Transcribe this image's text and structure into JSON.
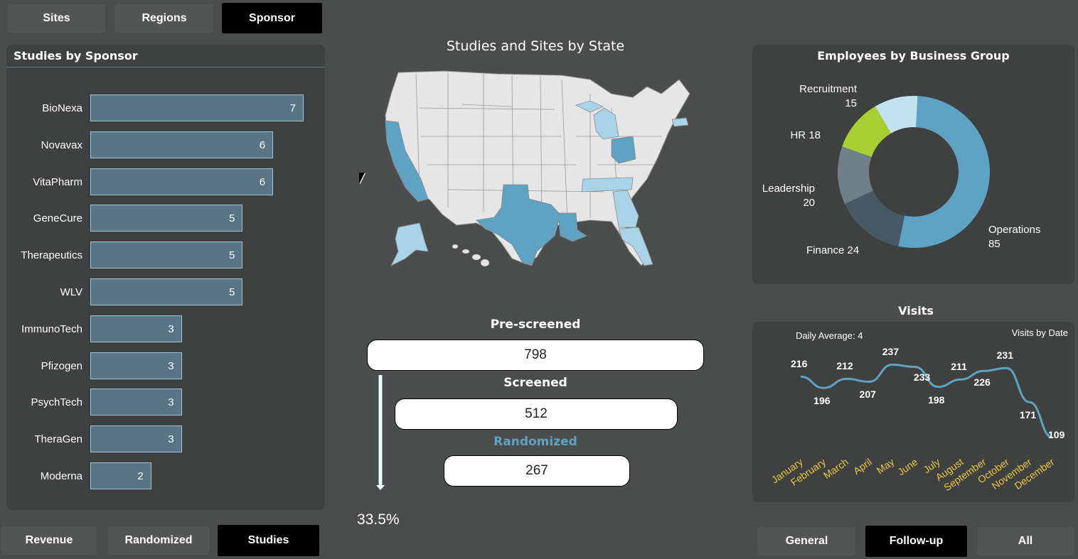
{
  "top_tabs": [
    {
      "label": "Sites",
      "active": false
    },
    {
      "label": "Regions",
      "active": false
    },
    {
      "label": "Sponsor",
      "active": true
    }
  ],
  "bottom_left_tabs": [
    {
      "label": "Revenue",
      "active": false
    },
    {
      "label": "Randomized",
      "active": false
    },
    {
      "label": "Studies",
      "active": true
    }
  ],
  "bottom_right_tabs": [
    {
      "label": "General",
      "active": false
    },
    {
      "label": "Follow-up",
      "active": true
    },
    {
      "label": "All",
      "active": false
    }
  ],
  "studies_panel": {
    "title": "Studies by Sponsor"
  },
  "map_panel": {
    "title": "Studies and Sites by State"
  },
  "donut_panel": {
    "title": "Employees by Business Group"
  },
  "visits_panel": {
    "title": "Visits",
    "daily_average": "Daily Average: 4",
    "visits_by_date": "Visits by Date"
  },
  "funnel": {
    "stages": [
      {
        "label": "Pre-screened",
        "value": "798"
      },
      {
        "label": "Screened",
        "value": "512"
      },
      {
        "label": "Randomized",
        "value": "267"
      }
    ],
    "conversion": "33.5%"
  },
  "colors": {
    "accent": "#5ea3c4",
    "light_blue": "#a9d3e8",
    "lime": "#a8cf32",
    "month_label": "#e8c840"
  },
  "chart_data": [
    {
      "type": "bar",
      "title": "Studies by Sponsor",
      "categories": [
        "BioNexa",
        "Novavax",
        "VitaPharm",
        "GeneCure",
        "Therapeutics",
        "WLV",
        "ImmunoTech",
        "Pfizogen",
        "PsychTech",
        "TheraGen",
        "Moderna"
      ],
      "values": [
        7,
        6,
        6,
        5,
        5,
        5,
        3,
        3,
        3,
        3,
        2
      ],
      "xlim": [
        0,
        7
      ]
    },
    {
      "type": "pie",
      "title": "Employees by Business Group",
      "categories": [
        "Operations",
        "Finance",
        "Leadership",
        "HR",
        "Recruitment"
      ],
      "values": [
        85,
        24,
        20,
        18,
        15
      ],
      "labels": [
        {
          "name": "Operations",
          "value": "85"
        },
        {
          "name": "Finance",
          "value": "24"
        },
        {
          "name": "Leadership",
          "value": "20"
        },
        {
          "name": "HR",
          "value": "18"
        },
        {
          "name": "Recruitment",
          "value": "15"
        }
      ],
      "colors": [
        "#5ea3c4",
        "#465a65",
        "#6f7e87",
        "#a8cf32",
        "#c3e2f0"
      ]
    },
    {
      "type": "line",
      "title": "Visits",
      "categories": [
        "January",
        "February",
        "March",
        "April",
        "May",
        "June",
        "July",
        "August",
        "September",
        "October",
        "November",
        "December"
      ],
      "values": [
        216,
        196,
        212,
        207,
        237,
        233,
        198,
        211,
        226,
        231,
        171,
        109
      ],
      "ylim": [
        100,
        250
      ]
    }
  ]
}
